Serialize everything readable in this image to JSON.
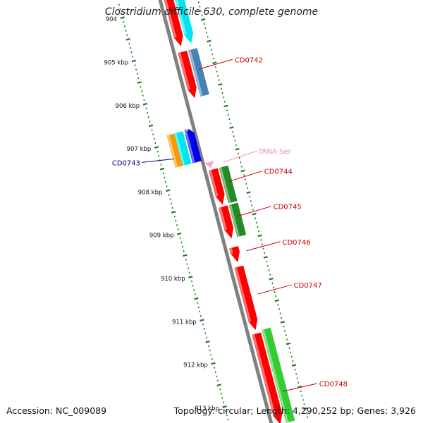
{
  "title": "Clostridium difficile 630, complete genome",
  "accession": "Accession: NC_009089",
  "summary": "Topology: circular; Length: 4,290,252 bp; Genes: 3,926",
  "colors": {
    "backbone": "#808080",
    "scale_tick": "#1e7a1e",
    "cds_red": "#ff0000",
    "cds_cyan": "#00e5ee",
    "cds_steelblue": "#4682b4",
    "cds_orange": "#ff9900",
    "cds_blue": "#0000ee",
    "cds_darkgreen": "#228b22",
    "cds_lightgreen": "#33cc33",
    "trna_pink": "#f4a6c8",
    "label_red": "#cc0000",
    "label_blue": "#00008b",
    "label_pink": "#f08cbf"
  },
  "scale": {
    "start_kbp": 904,
    "end_kbp": 913.5,
    "labels": [
      {
        "kbp": 904,
        "text": "904"
      },
      {
        "kbp": 905,
        "text": "905 kbp"
      },
      {
        "kbp": 906,
        "text": "906 kbp"
      },
      {
        "kbp": 907,
        "text": "907 kbp"
      },
      {
        "kbp": 908,
        "text": "908 kbp"
      },
      {
        "kbp": 909,
        "text": "909 kbp"
      },
      {
        "kbp": 910,
        "text": "910 kbp"
      },
      {
        "kbp": 911,
        "text": "911 kbp"
      },
      {
        "kbp": 912,
        "text": "912 kbp"
      },
      {
        "kbp": 913,
        "text": "913 kbp"
      }
    ]
  },
  "features": [
    {
      "name": "CD0741-cyan",
      "start_kbp": 903.7,
      "end_kbp": 904.95,
      "lane": 2,
      "color": "#00e5ee",
      "arrow": "down"
    },
    {
      "name": "CD0741-red",
      "start_kbp": 903.7,
      "end_kbp": 904.95,
      "lane": 1,
      "color": "#ff0000",
      "arrow": "down"
    },
    {
      "name": "CD0742-red",
      "start_kbp": 905.08,
      "end_kbp": 906.15,
      "lane": 1,
      "color": "#ff0000",
      "arrow": "down"
    },
    {
      "name": "CD0742-steel",
      "start_kbp": 905.08,
      "end_kbp": 906.15,
      "lane": 2,
      "color": "#4682b4",
      "arrow": "none"
    },
    {
      "name": "CD0743-orange",
      "start_kbp": 906.8,
      "end_kbp": 907.55,
      "lane": -2.2,
      "color": "#ff9900",
      "arrow": "none"
    },
    {
      "name": "CD0743-cyan",
      "start_kbp": 906.8,
      "end_kbp": 907.55,
      "lane": -1.5,
      "color": "#00e5ee",
      "arrow": "none"
    },
    {
      "name": "CD0743-blue",
      "start_kbp": 906.78,
      "end_kbp": 907.55,
      "lane": -0.5,
      "color": "#0000ee",
      "arrow": "up"
    },
    {
      "name": "tRNA-Ser",
      "start_kbp": 907.62,
      "end_kbp": 907.75,
      "lane": 0.8,
      "color": "#f4a6c8",
      "arrow": "tri"
    },
    {
      "name": "CD0744-red",
      "start_kbp": 907.8,
      "end_kbp": 908.62,
      "lane": 1,
      "color": "#ff0000",
      "arrow": "down"
    },
    {
      "name": "CD0744-green",
      "start_kbp": 907.8,
      "end_kbp": 908.62,
      "lane": 2,
      "color": "#228b22",
      "arrow": "none"
    },
    {
      "name": "CD0745-red",
      "start_kbp": 908.66,
      "end_kbp": 909.4,
      "lane": 1,
      "color": "#ff0000",
      "arrow": "down"
    },
    {
      "name": "CD0745-green",
      "start_kbp": 908.66,
      "end_kbp": 909.4,
      "lane": 2,
      "color": "#228b22",
      "arrow": "none"
    },
    {
      "name": "CD0746-red",
      "start_kbp": 909.6,
      "end_kbp": 909.95,
      "lane": 1,
      "color": "#ff0000",
      "arrow": "down"
    },
    {
      "name": "CD0747-red",
      "start_kbp": 910.05,
      "end_kbp": 911.52,
      "lane": 1,
      "color": "#ff0000",
      "arrow": "down"
    },
    {
      "name": "CD0748-red",
      "start_kbp": 911.6,
      "end_kbp": 913.7,
      "lane": 1,
      "color": "#ff0000",
      "arrow": "down"
    },
    {
      "name": "CD0748-green",
      "start_kbp": 911.55,
      "end_kbp": 913.7,
      "lane": 2,
      "color": "#33cc33",
      "arrow": "none"
    }
  ],
  "labels": [
    {
      "text": "CD0742",
      "kbp": 905.55,
      "side": "right",
      "dy": -14,
      "color": "#cc0000"
    },
    {
      "text": "CD0743",
      "kbp": 907.35,
      "side": "left",
      "dy": 5,
      "color": "#00008b"
    },
    {
      "text": "tRNA-Ser",
      "kbp": 907.7,
      "side": "right",
      "dy": -16,
      "color": "#f08cbf"
    },
    {
      "text": "CD0744",
      "kbp": 908.15,
      "side": "right",
      "dy": -15,
      "color": "#cc0000"
    },
    {
      "text": "CD0745",
      "kbp": 908.95,
      "side": "right",
      "dy": -14,
      "color": "#cc0000"
    },
    {
      "text": "CD0746",
      "kbp": 909.75,
      "side": "right",
      "dy": -13,
      "color": "#cc0000"
    },
    {
      "text": "CD0747",
      "kbp": 910.75,
      "side": "right",
      "dy": -13,
      "color": "#cc0000"
    },
    {
      "text": "CD0748",
      "kbp": 913.0,
      "side": "right",
      "dy": -11,
      "color": "#cc0000"
    }
  ]
}
